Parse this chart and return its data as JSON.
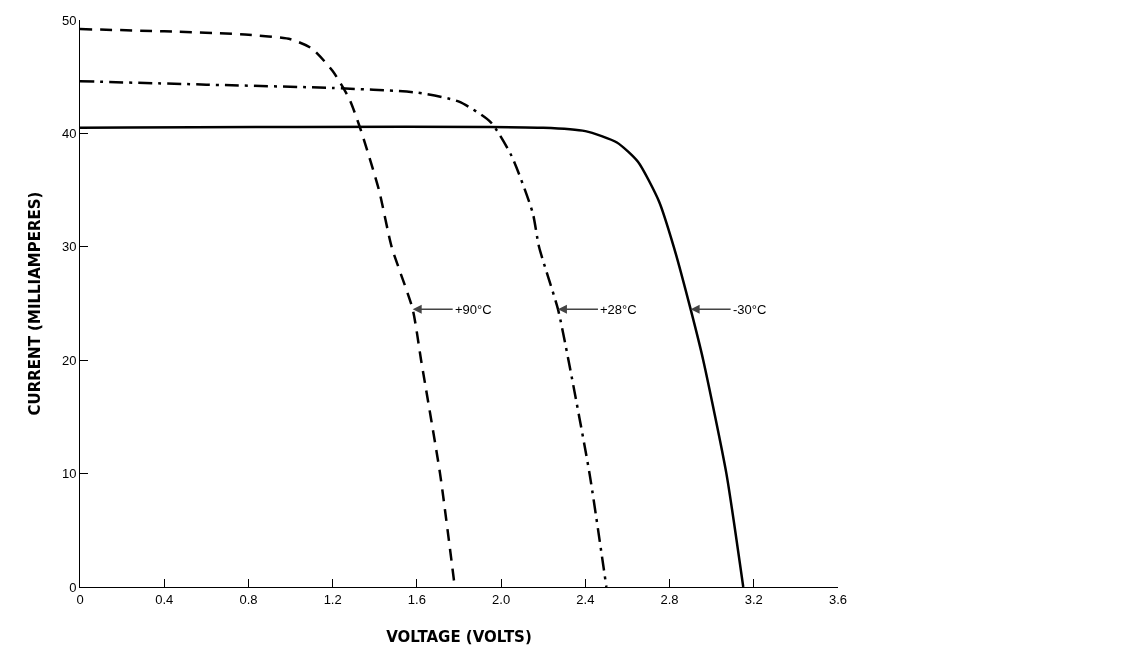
{
  "chart_data": {
    "type": "line",
    "xlabel": "VOLTAGE (VOLTS)",
    "ylabel": "CURRENT (MILLIAMPERES)",
    "xlim": [
      0,
      3.6
    ],
    "ylim": [
      0,
      50
    ],
    "xticks": [
      0,
      0.4,
      0.8,
      1.2,
      1.6,
      {
        "value": 2,
        "label": "2.0"
      },
      2.4,
      2.8,
      3.2,
      3.6
    ],
    "yticks": [
      0,
      10,
      20,
      30,
      40,
      50
    ],
    "grid": false,
    "marker": "none",
    "series": [
      {
        "color": "#000000",
        "line_style": "dashed",
        "x": [
          0,
          0.4,
          0.8,
          1.0,
          1.1,
          1.2,
          1.28,
          1.33,
          1.42,
          1.48,
          1.58,
          1.62,
          1.71,
          1.78
        ],
        "values": [
          49.2,
          49,
          48.7,
          48.3,
          47.5,
          45.5,
          43,
          40.5,
          35,
          30,
          24.5,
          20,
          10,
          0
        ]
      },
      {
        "color": "#000000",
        "line_style": "dashdot",
        "x": [
          0,
          0.6,
          1.2,
          1.6,
          1.8,
          1.95,
          2.05,
          2.15,
          2.18,
          2.27,
          2.32,
          2.42,
          2.5
        ],
        "values": [
          44.6,
          44.3,
          44,
          43.6,
          42.8,
          41,
          38,
          33,
          30,
          24.5,
          20,
          10,
          0
        ]
      },
      {
        "color": "#000000",
        "line_style": "solid",
        "x": [
          0,
          2.2,
          2.4,
          2.55,
          2.65,
          2.75,
          2.82,
          2.9,
          2.96,
          3.07,
          3.15
        ],
        "values": [
          40.5,
          40.5,
          40.2,
          39.2,
          37.5,
          34,
          30,
          24.5,
          20,
          10,
          0
        ]
      }
    ],
    "annotations": [
      {
        "text": "+90°C",
        "x": 1.58,
        "y": 24.5
      },
      {
        "text": "+28°C",
        "x": 2.27,
        "y": 24.5
      },
      {
        "text": "-30°C",
        "x": 2.9,
        "y": 24.5
      }
    ]
  }
}
